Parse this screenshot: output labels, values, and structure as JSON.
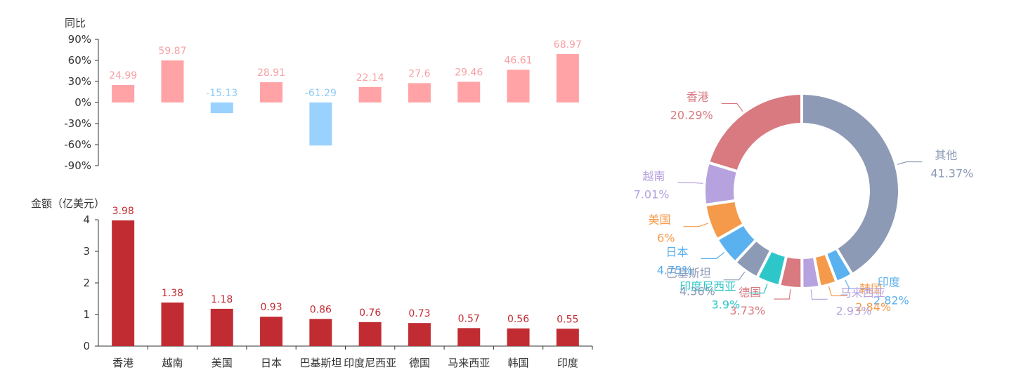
{
  "chart_data": [
    {
      "type": "bar",
      "ylabel": "同比",
      "ylim": [
        -90,
        90
      ],
      "yticks": [
        "90%",
        "60%",
        "30%",
        "0%",
        "-30%",
        "-60%",
        "-90%"
      ],
      "categories": [
        "香港",
        "越南",
        "美国",
        "日本",
        "巴基斯坦",
        "印度尼西亚",
        "德国",
        "马来西亚",
        "韩国",
        "印度"
      ],
      "values": [
        24.99,
        59.87,
        -15.13,
        28.91,
        -61.29,
        22.14,
        27.6,
        29.46,
        46.61,
        68.97
      ],
      "value_labels": [
        "24.99",
        "59.87",
        "-15.13",
        "28.91",
        "-61.29",
        "22.14",
        "27.6",
        "29.46",
        "46.61",
        "68.97"
      ],
      "colors": {
        "positive": "#ffa3a6",
        "negative": "#99d1ff",
        "positive_label": "#f7a1a4",
        "negative_label": "#8fcbf5"
      }
    },
    {
      "type": "bar",
      "ylabel": "金额（亿美元）",
      "ylim": [
        0,
        4
      ],
      "yticks": [
        "4",
        "3",
        "2",
        "1",
        "0"
      ],
      "categories": [
        "香港",
        "越南",
        "美国",
        "日本",
        "巴基斯坦",
        "印度尼西亚",
        "德国",
        "马来西亚",
        "韩国",
        "印度"
      ],
      "values": [
        3.98,
        1.38,
        1.18,
        0.93,
        0.86,
        0.76,
        0.73,
        0.57,
        0.56,
        0.55
      ],
      "value_labels": [
        "3.98",
        "1.38",
        "1.18",
        "0.93",
        "0.86",
        "0.76",
        "0.73",
        "0.57",
        "0.56",
        "0.55"
      ],
      "colors": {
        "bar": "#c12c33",
        "label": "#c12c33"
      }
    },
    {
      "type": "pie",
      "variant": "donut",
      "slices": [
        {
          "name": "其他",
          "pct": 41.37,
          "pct_label": "41.37%",
          "color": "#8d9ab5"
        },
        {
          "name": "印度",
          "pct": 2.82,
          "pct_label": "2.82%",
          "color": "#5ab1ef"
        },
        {
          "name": "韩国",
          "pct": 2.84,
          "pct_label": "2.84%",
          "color": "#f59a4a"
        },
        {
          "name": "马来西亚",
          "pct": 2.93,
          "pct_label": "2.93%",
          "color": "#b6a2de"
        },
        {
          "name": "德国",
          "pct": 3.73,
          "pct_label": "3.73%",
          "color": "#d87a80"
        },
        {
          "name": "印度尼西亚",
          "pct": 3.9,
          "pct_label": "3.9%",
          "color": "#2ec7c9"
        },
        {
          "name": "巴基斯坦",
          "pct": 4.36,
          "pct_label": "4.36%",
          "color": "#8d9ab5"
        },
        {
          "name": "日本",
          "pct": 4.75,
          "pct_label": "4.75%",
          "color": "#5ab1ef"
        },
        {
          "name": "美国",
          "pct": 6,
          "pct_label": "6%",
          "color": "#f59a4a"
        },
        {
          "name": "越南",
          "pct": 7.01,
          "pct_label": "7.01%",
          "color": "#b6a2de"
        },
        {
          "name": "香港",
          "pct": 20.29,
          "pct_label": "20.29%",
          "color": "#d87a80"
        }
      ]
    }
  ]
}
